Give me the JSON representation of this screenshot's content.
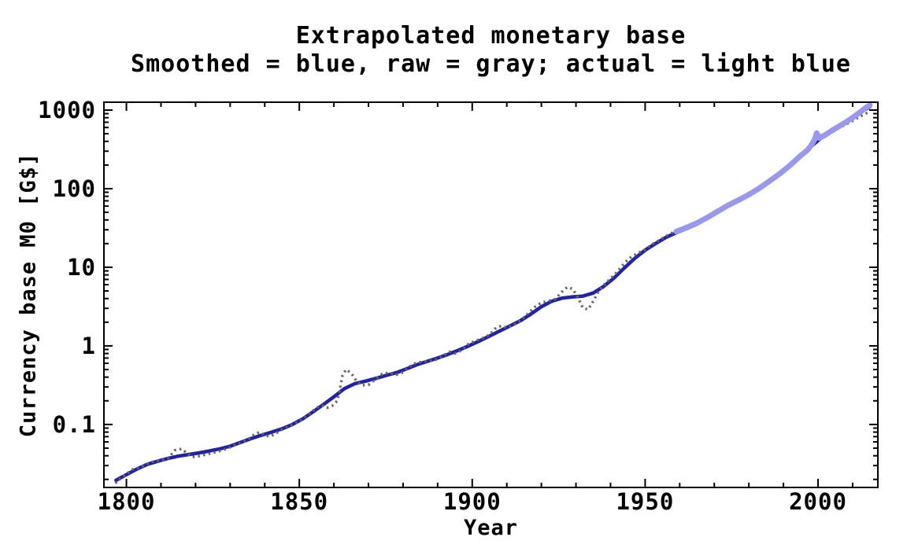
{
  "page": {
    "background": "#ffffff",
    "text_color": "#000000"
  },
  "chart_data": {
    "type": "line",
    "title": "Extrapolated monetary base",
    "subtitle": "Smoothed = blue, raw = gray; actual = light blue",
    "xlabel": "Year",
    "ylabel": "Currency base M0 [G$]",
    "grid": false,
    "legend_position": "none (described in subtitle)",
    "frame_color": "#000000",
    "x_axis": {
      "scale": "linear",
      "min": 1793.5,
      "max": 2017.3,
      "major_ticks": [
        1800,
        1850,
        1900,
        1950,
        2000
      ],
      "major_tick_labels": [
        "1800",
        "1850",
        "1900",
        "1950",
        "2000"
      ],
      "minor_tick_step": 10
    },
    "y_axis": {
      "scale": "log",
      "min": 0.0158,
      "max": 1259,
      "major_ticks": [
        1000,
        100,
        10,
        1,
        0.1
      ],
      "major_tick_labels": [
        "1000",
        "100",
        "10",
        "1",
        "0.1"
      ],
      "minor_tick_mantissas": [
        2,
        3,
        4,
        5,
        6,
        7,
        8,
        9
      ],
      "minor_tick_decades": [
        0.01,
        0.1,
        1,
        10,
        100
      ]
    },
    "series": [
      {
        "name": "smoothed",
        "legend": "Smoothed = blue",
        "color": "#2121aa",
        "style": "solid",
        "width": 4.5,
        "points": [
          [
            1797,
            0.0195
          ],
          [
            1800,
            0.023
          ],
          [
            1803,
            0.027
          ],
          [
            1806,
            0.031
          ],
          [
            1809,
            0.034
          ],
          [
            1812,
            0.037
          ],
          [
            1815,
            0.0395
          ],
          [
            1818,
            0.0415
          ],
          [
            1821,
            0.0435
          ],
          [
            1824,
            0.046
          ],
          [
            1827,
            0.049
          ],
          [
            1830,
            0.053
          ],
          [
            1833,
            0.059
          ],
          [
            1836,
            0.066
          ],
          [
            1839,
            0.073
          ],
          [
            1842,
            0.08
          ],
          [
            1845,
            0.088
          ],
          [
            1848,
            0.1
          ],
          [
            1851,
            0.118
          ],
          [
            1854,
            0.145
          ],
          [
            1857,
            0.18
          ],
          [
            1860,
            0.225
          ],
          [
            1863,
            0.285
          ],
          [
            1866,
            0.33
          ],
          [
            1869,
            0.355
          ],
          [
            1872,
            0.385
          ],
          [
            1875,
            0.42
          ],
          [
            1878,
            0.455
          ],
          [
            1881,
            0.51
          ],
          [
            1884,
            0.575
          ],
          [
            1887,
            0.635
          ],
          [
            1890,
            0.7
          ],
          [
            1893,
            0.78
          ],
          [
            1896,
            0.88
          ],
          [
            1899,
            1.0
          ],
          [
            1902,
            1.15
          ],
          [
            1905,
            1.33
          ],
          [
            1908,
            1.55
          ],
          [
            1911,
            1.8
          ],
          [
            1914,
            2.1
          ],
          [
            1917,
            2.55
          ],
          [
            1920,
            3.15
          ],
          [
            1923,
            3.7
          ],
          [
            1926,
            4.05
          ],
          [
            1929,
            4.2
          ],
          [
            1932,
            4.3
          ],
          [
            1935,
            4.7
          ],
          [
            1938,
            5.7
          ],
          [
            1941,
            7.3
          ],
          [
            1944,
            9.8
          ],
          [
            1947,
            13.0
          ],
          [
            1950,
            16.5
          ],
          [
            1953,
            20.0
          ],
          [
            1956,
            24.0
          ],
          [
            1959,
            27.5
          ],
          [
            1962,
            31.0
          ],
          [
            1965,
            35.5
          ],
          [
            1968,
            42.0
          ],
          [
            1971,
            50
          ],
          [
            1974,
            60
          ],
          [
            1977,
            70
          ],
          [
            1980,
            82
          ],
          [
            1983,
            99
          ],
          [
            1986,
            122
          ],
          [
            1989,
            152
          ],
          [
            1992,
            196
          ],
          [
            1995,
            258
          ],
          [
            1998,
            345
          ],
          [
            2001,
            445
          ],
          [
            2004,
            540
          ],
          [
            2007,
            650
          ],
          [
            2010,
            780
          ],
          [
            2013,
            980
          ],
          [
            2015,
            1100
          ]
        ]
      },
      {
        "name": "raw",
        "legend": "raw = gray",
        "color": "#666666",
        "style": "dotted",
        "width": 3.4,
        "points": [
          [
            1796.8,
            0.0178
          ],
          [
            1798,
            0.02
          ],
          [
            1800,
            0.0235
          ],
          [
            1802,
            0.027
          ],
          [
            1804,
            0.0285
          ],
          [
            1806,
            0.0315
          ],
          [
            1808,
            0.034
          ],
          [
            1810,
            0.035
          ],
          [
            1812,
            0.037
          ],
          [
            1814,
            0.047
          ],
          [
            1816,
            0.049
          ],
          [
            1817.5,
            0.043
          ],
          [
            1819,
            0.0385
          ],
          [
            1821,
            0.0395
          ],
          [
            1823,
            0.0415
          ],
          [
            1825,
            0.0435
          ],
          [
            1827,
            0.046
          ],
          [
            1829,
            0.049
          ],
          [
            1831,
            0.054
          ],
          [
            1833,
            0.058
          ],
          [
            1835,
            0.064
          ],
          [
            1837,
            0.075
          ],
          [
            1838.5,
            0.08
          ],
          [
            1840,
            0.0735
          ],
          [
            1841.5,
            0.07
          ],
          [
            1843,
            0.076
          ],
          [
            1845,
            0.086
          ],
          [
            1847,
            0.094
          ],
          [
            1849,
            0.104
          ],
          [
            1851,
            0.118
          ],
          [
            1853,
            0.138
          ],
          [
            1855,
            0.163
          ],
          [
            1856.5,
            0.175
          ],
          [
            1858,
            0.163
          ],
          [
            1859.5,
            0.172
          ],
          [
            1861,
            0.2
          ],
          [
            1862.5,
            0.42
          ],
          [
            1863.5,
            0.5
          ],
          [
            1865,
            0.45
          ],
          [
            1866.5,
            0.36
          ],
          [
            1868,
            0.315
          ],
          [
            1870,
            0.32
          ],
          [
            1872,
            0.375
          ],
          [
            1874,
            0.44
          ],
          [
            1876,
            0.455
          ],
          [
            1878,
            0.43
          ],
          [
            1880,
            0.46
          ],
          [
            1882,
            0.55
          ],
          [
            1884,
            0.615
          ],
          [
            1886,
            0.63
          ],
          [
            1888,
            0.645
          ],
          [
            1890,
            0.68
          ],
          [
            1892,
            0.77
          ],
          [
            1893.5,
            0.84
          ],
          [
            1895,
            0.8
          ],
          [
            1897,
            0.88
          ],
          [
            1899,
            1.06
          ],
          [
            1901,
            1.16
          ],
          [
            1903,
            1.25
          ],
          [
            1905,
            1.38
          ],
          [
            1907,
            1.72
          ],
          [
            1908.5,
            1.8
          ],
          [
            1910,
            1.7
          ],
          [
            1912,
            1.85
          ],
          [
            1914,
            2.1
          ],
          [
            1916,
            2.55
          ],
          [
            1918,
            3.1
          ],
          [
            1920,
            3.55
          ],
          [
            1922,
            3.7
          ],
          [
            1924,
            3.95
          ],
          [
            1926,
            4.9
          ],
          [
            1927.5,
            5.6
          ],
          [
            1929,
            5.3
          ],
          [
            1930.5,
            4.2
          ],
          [
            1932,
            3.05
          ],
          [
            1933.5,
            2.9
          ],
          [
            1935,
            3.7
          ],
          [
            1936.5,
            4.9
          ],
          [
            1938,
            5.9
          ],
          [
            1940,
            7.2
          ],
          [
            1942,
            8.8
          ],
          [
            1944,
            11.3
          ],
          [
            1946,
            13.6
          ],
          [
            1948,
            15.2
          ],
          [
            1950,
            16.8
          ],
          [
            1952,
            19.5
          ],
          [
            1954,
            22.0
          ],
          [
            1956,
            24.8
          ],
          [
            1958,
            27.8
          ],
          [
            1960,
            30.5
          ],
          [
            1963,
            34.5
          ],
          [
            1966,
            40
          ],
          [
            1969,
            47
          ],
          [
            1972,
            55
          ],
          [
            1975,
            64
          ],
          [
            1978,
            74
          ],
          [
            1981,
            90
          ],
          [
            1984,
            107
          ],
          [
            1987,
            133
          ],
          [
            1990,
            168
          ],
          [
            1993,
            215
          ],
          [
            1996,
            283
          ],
          [
            1998,
            360
          ],
          [
            2000,
            425
          ],
          [
            2002,
            465
          ],
          [
            2004,
            520
          ],
          [
            2006,
            590
          ],
          [
            2008,
            655
          ],
          [
            2010,
            730
          ],
          [
            2012,
            820
          ],
          [
            2014,
            910
          ],
          [
            2015,
            950
          ]
        ]
      },
      {
        "name": "actual",
        "legend": "actual = light blue",
        "color": "#9898ee",
        "style": "solid",
        "width": 7,
        "points": [
          [
            1959,
            28.5
          ],
          [
            1962,
            32
          ],
          [
            1965,
            36.5
          ],
          [
            1968,
            43
          ],
          [
            1971,
            51.5
          ],
          [
            1974,
            61.5
          ],
          [
            1977,
            71.5
          ],
          [
            1980,
            84
          ],
          [
            1983,
            101
          ],
          [
            1986,
            125
          ],
          [
            1989,
            156
          ],
          [
            1992,
            200
          ],
          [
            1995,
            264
          ],
          [
            1997,
            310
          ],
          [
            1998,
            355
          ],
          [
            1999,
            420
          ],
          [
            1999.6,
            510
          ],
          [
            2000.4,
            440
          ],
          [
            2001,
            455
          ],
          [
            2002,
            480
          ],
          [
            2004,
            550
          ],
          [
            2006,
            620
          ],
          [
            2008,
            700
          ],
          [
            2010,
            800
          ],
          [
            2012,
            930
          ],
          [
            2014,
            1090
          ],
          [
            2015,
            1150
          ]
        ]
      }
    ]
  }
}
